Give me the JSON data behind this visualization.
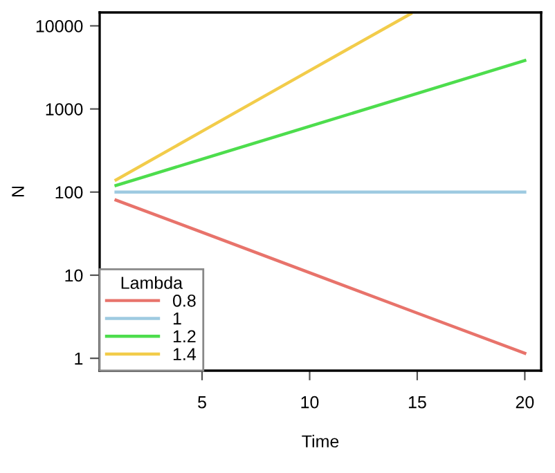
{
  "chart_data": {
    "type": "line",
    "xlabel": "Time",
    "ylabel": "N",
    "legend_title": "Lambda",
    "log": "y",
    "grid": false,
    "legend": "bottom left",
    "xlim": [
      0.24,
      20.76
    ],
    "ylim": [
      0.71,
      14500
    ],
    "xticks": [
      5,
      10,
      15,
      20
    ],
    "yticks": [
      1,
      10,
      100,
      1000,
      10000
    ],
    "x": [
      1,
      5,
      10,
      15,
      20
    ],
    "series": [
      {
        "name": "0.8",
        "color": "#e8736b",
        "values": [
          80,
          32.8,
          10.7,
          3.5,
          1.15
        ]
      },
      {
        "name": "1",
        "color": "#9ecae1",
        "values": [
          100,
          100,
          100,
          100,
          100
        ]
      },
      {
        "name": "1.2",
        "color": "#4ddd4d",
        "values": [
          120,
          249,
          619,
          1541,
          3834
        ]
      },
      {
        "name": "1.4",
        "color": "#f2cc4a",
        "x": [
          1,
          5,
          10,
          14.7
        ],
        "values": [
          140,
          538,
          2893,
          14000
        ]
      }
    ]
  }
}
